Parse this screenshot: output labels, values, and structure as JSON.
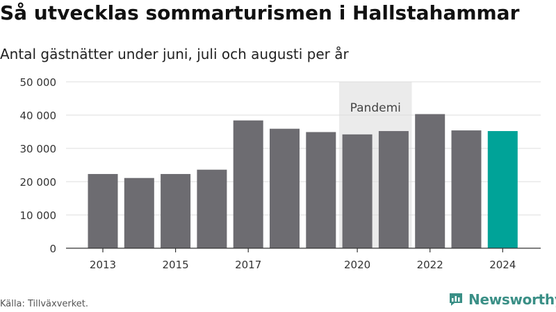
{
  "title": "Så utvecklas sommarturismen i Hallstahammar",
  "subtitle": "Antal gästnätter under juni, juli och augusti per år",
  "source": "Källa: Tillväxverket.",
  "brand": "Newsworthy",
  "colors": {
    "bar": "#6d6c71",
    "highlight": "#00a398",
    "pandemic_band": "#ebebeb",
    "brand": "#3a8f86"
  },
  "icons": [
    "newsworthy-logo-icon"
  ],
  "chart_data": {
    "type": "bar",
    "categories": [
      "2013",
      "2014",
      "2015",
      "2016",
      "2017",
      "2018",
      "2019",
      "2020",
      "2021",
      "2022",
      "2023",
      "2024"
    ],
    "values": [
      22300,
      21100,
      22300,
      23600,
      38400,
      35900,
      34900,
      34200,
      35200,
      40300,
      35400,
      35200
    ],
    "highlight_category": "2024",
    "xtick_labels": [
      "2013",
      "2015",
      "2017",
      "2020",
      "2022",
      "2024"
    ],
    "yticks": [
      0,
      10000,
      20000,
      30000,
      40000,
      50000
    ],
    "ytick_labels": [
      "0",
      "10 000",
      "20 000",
      "30 000",
      "40 000",
      "50 000"
    ],
    "ylim": [
      0,
      50000
    ],
    "grid": true,
    "annotation": {
      "label": "Pandemi",
      "from": "2020",
      "to": "2021"
    }
  }
}
